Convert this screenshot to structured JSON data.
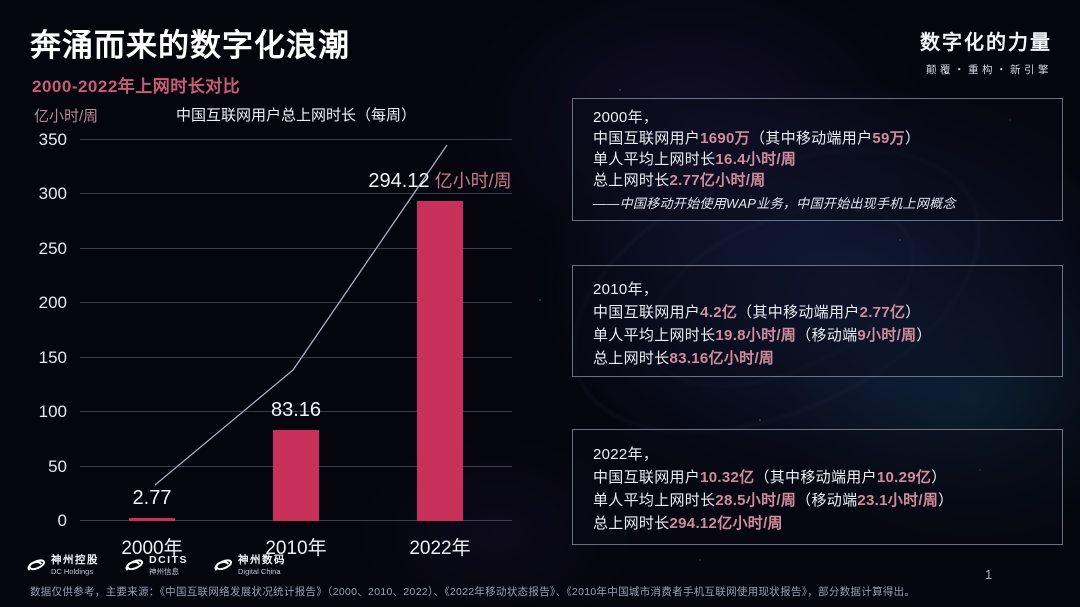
{
  "header": {
    "title": "奔涌而来的数字化浪潮",
    "subtitle": "2000-2022年上网时长对比"
  },
  "brand": {
    "name": "数字化的力量",
    "tagline": "颠覆・重构・新引擎"
  },
  "chart_data": {
    "type": "bar",
    "title": "中国互联网用户总上网时长（每周）",
    "ylabel": "亿小时/周",
    "categories": [
      "2000年",
      "2010年",
      "2022年"
    ],
    "values": [
      2.77,
      83.16,
      294.12
    ],
    "bar_labels": [
      "2.77",
      "83.16",
      "294.12"
    ],
    "bar_label_units": [
      "",
      "",
      " 亿小时/周"
    ],
    "ylim": [
      0,
      350
    ],
    "yticks": [
      0,
      50,
      100,
      150,
      200,
      250,
      300,
      350
    ],
    "grid": true,
    "legend": false,
    "bar_color": "#c8305a",
    "trend_line": "decorative rising line across bars"
  },
  "theme": {
    "background": "#04050d",
    "bar_color": "#c8305a",
    "accent_pink": "#d08b9e",
    "subtitle_pink": "#c75d7a",
    "text_white": "#eef0f7"
  },
  "cards": [
    {
      "lines": [
        {
          "segments": [
            {
              "text": "2000年，"
            }
          ]
        },
        {
          "segments": [
            {
              "text": "中国互联网用户"
            },
            {
              "text": "1690万",
              "accent": true
            },
            {
              "text": "（其中移动端用户"
            },
            {
              "text": "59万",
              "accent": true
            },
            {
              "text": "）"
            }
          ]
        },
        {
          "segments": [
            {
              "text": "单人平均上网时长"
            },
            {
              "text": "16.4小时/周",
              "accent": true
            }
          ]
        },
        {
          "segments": [
            {
              "text": "总上网时长"
            },
            {
              "text": "2.77亿小时/周",
              "accent": true
            }
          ]
        },
        {
          "note": true,
          "segments": [
            {
              "text": "——中国移动开始使用WAP业务，中国开始出现手机上网概念"
            }
          ]
        }
      ]
    },
    {
      "lines": [
        {
          "segments": [
            {
              "text": "2010年，"
            }
          ]
        },
        {
          "segments": [
            {
              "text": "中国互联网用户"
            },
            {
              "text": "4.2亿",
              "accent": true
            },
            {
              "text": "（其中移动端用户"
            },
            {
              "text": "2.77亿",
              "accent": true
            },
            {
              "text": "）"
            }
          ]
        },
        {
          "segments": [
            {
              "text": "单人平均上网时长"
            },
            {
              "text": "19.8小时/周",
              "accent": true
            },
            {
              "text": "（移动端"
            },
            {
              "text": "9小时/周",
              "accent": true
            },
            {
              "text": "）"
            }
          ]
        },
        {
          "segments": [
            {
              "text": "总上网时长"
            },
            {
              "text": "83.16亿小时/周",
              "accent": true
            }
          ]
        }
      ]
    },
    {
      "lines": [
        {
          "segments": [
            {
              "text": "2022年，"
            }
          ]
        },
        {
          "segments": [
            {
              "text": "中国互联网用户"
            },
            {
              "text": "10.32亿",
              "accent": true
            },
            {
              "text": "（其中移动端用户"
            },
            {
              "text": "10.29亿",
              "accent": true
            },
            {
              "text": "）"
            }
          ]
        },
        {
          "segments": [
            {
              "text": "单人平均上网时长"
            },
            {
              "text": "28.5小时/周",
              "accent": true
            },
            {
              "text": "（移动端"
            },
            {
              "text": "23.1小时/周",
              "accent": true
            },
            {
              "text": "）"
            }
          ]
        },
        {
          "segments": [
            {
              "text": "总上网时长"
            },
            {
              "text": "294.12亿小时/周",
              "accent": true
            }
          ]
        }
      ]
    }
  ],
  "footer": {
    "logos": [
      {
        "line1": "神州控股",
        "line2": "DC Holdings"
      },
      {
        "line1": "DCITS",
        "line2": "神州信息"
      },
      {
        "line1": "神州数码",
        "line2": "Digital China"
      }
    ],
    "source": "数据仅供参考，主要来源：《中国互联网络发展状况统计报告》（2000、2010、2022）、《2022年移动状态报告》、《2010年中国城市消费者手机互联网使用现状报告》，部分数据计算得出。",
    "page_number": "1"
  }
}
